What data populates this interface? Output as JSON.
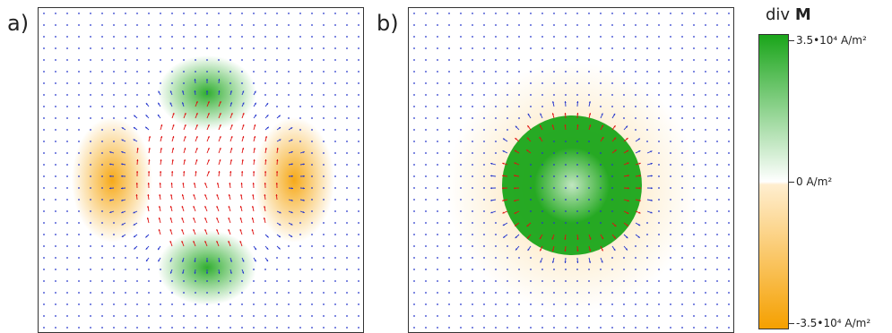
{
  "panels": [
    {
      "label": "a)",
      "pattern": "quadrupole"
    },
    {
      "label": "b)",
      "pattern": "ring"
    }
  ],
  "colorbar": {
    "title_prefix": "div ",
    "title_symbol": "M",
    "max_label": "3.5•10⁴ A/m²",
    "zero_label": "0 A/m²",
    "min_label": "-3.5•10⁴ A/m²",
    "positive_color": "#1aa51a",
    "negative_color": "#f5a000"
  },
  "arrow_colors": {
    "weak": "#2233cc",
    "strong": "#e01010"
  }
}
